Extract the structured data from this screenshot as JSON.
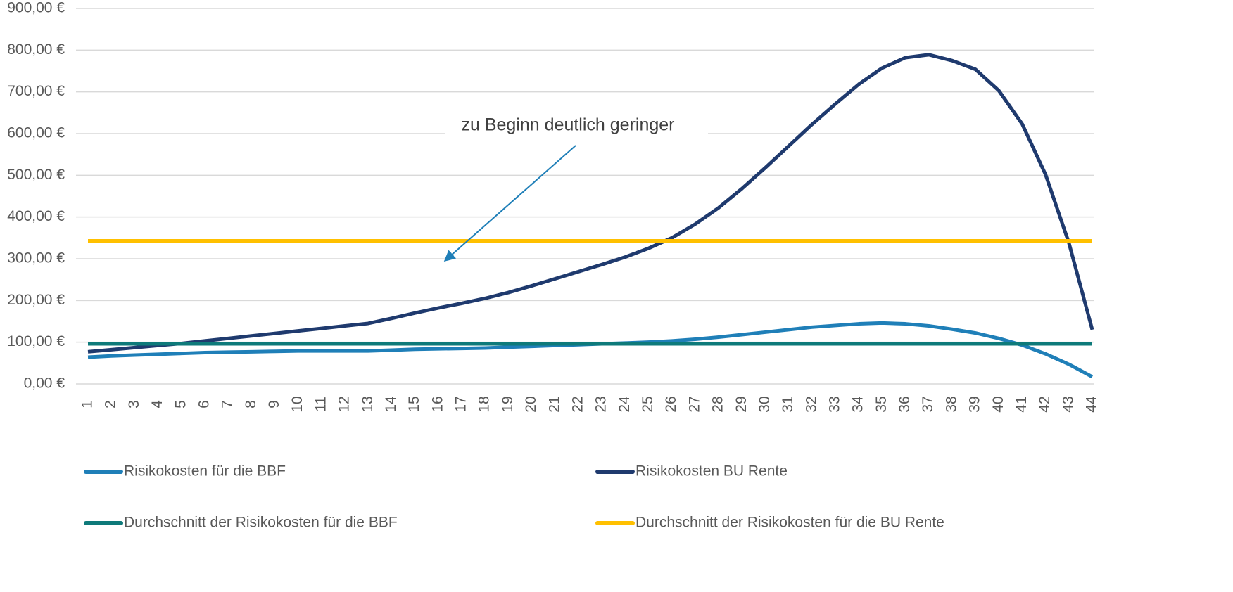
{
  "chart_data": {
    "type": "line",
    "annotation": "zu Beginn deutlich geringer",
    "categories": [
      "1",
      "2",
      "3",
      "4",
      "5",
      "6",
      "7",
      "8",
      "9",
      "10",
      "11",
      "12",
      "13",
      "14",
      "15",
      "16",
      "17",
      "18",
      "19",
      "20",
      "21",
      "22",
      "23",
      "24",
      "25",
      "26",
      "27",
      "28",
      "29",
      "30",
      "31",
      "32",
      "33",
      "34",
      "35",
      "36",
      "37",
      "38",
      "39",
      "40",
      "41",
      "42",
      "43",
      "44"
    ],
    "series": [
      {
        "name": "Risikokosten für die BBF",
        "color": "#1f7fb8",
        "values": [
          64,
          67,
          69,
          71,
          73,
          75,
          76,
          77,
          78,
          79,
          79,
          79,
          79,
          81,
          83,
          84,
          85,
          86,
          88,
          90,
          92,
          94,
          96,
          98,
          100,
          103,
          107,
          112,
          118,
          124,
          130,
          136,
          140,
          144,
          146,
          144,
          139,
          131,
          122,
          109,
          93,
          72,
          47,
          17
        ]
      },
      {
        "name": "Risikokosten BU Rente",
        "color": "#1f3a6e",
        "values": [
          77,
          82,
          87,
          92,
          97,
          103,
          109,
          115,
          121,
          127,
          133,
          139,
          145,
          157,
          170,
          182,
          193,
          205,
          219,
          235,
          252,
          269,
          286,
          304,
          325,
          350,
          383,
          422,
          468,
          518,
          570,
          622,
          671,
          718,
          757,
          782,
          789,
          775,
          754,
          703,
          623,
          502,
          338,
          130
        ]
      },
      {
        "name": "Durchschnitt der Risikokosten für die BBF",
        "color": "#0e7a7a",
        "values": [
          96,
          96,
          96,
          96,
          96,
          96,
          96,
          96,
          96,
          96,
          96,
          96,
          96,
          96,
          96,
          96,
          96,
          96,
          96,
          96,
          96,
          96,
          96,
          96,
          96,
          96,
          96,
          96,
          96,
          96,
          96,
          96,
          96,
          96,
          96,
          96,
          96,
          96,
          96,
          96,
          96,
          96,
          96,
          96
        ]
      },
      {
        "name": "Durchschnitt der Risikokosten für die BU Rente",
        "color": "#ffc000",
        "values": [
          343,
          343,
          343,
          343,
          343,
          343,
          343,
          343,
          343,
          343,
          343,
          343,
          343,
          343,
          343,
          343,
          343,
          343,
          343,
          343,
          343,
          343,
          343,
          343,
          343,
          343,
          343,
          343,
          343,
          343,
          343,
          343,
          343,
          343,
          343,
          343,
          343,
          343,
          343,
          343,
          343,
          343,
          343,
          343
        ]
      }
    ],
    "ylim": [
      0,
      900
    ],
    "yticks": [
      {
        "value": 0,
        "label": "0,00 €"
      },
      {
        "value": 100,
        "label": "100,00 €"
      },
      {
        "value": 200,
        "label": "200,00 €"
      },
      {
        "value": 300,
        "label": "300,00 €"
      },
      {
        "value": 400,
        "label": "400,00 €"
      },
      {
        "value": 500,
        "label": "500,00 €"
      },
      {
        "value": 600,
        "label": "600,00 €"
      },
      {
        "value": 700,
        "label": "700,00 €"
      },
      {
        "value": 800,
        "label": "800,00 €"
      },
      {
        "value": 900,
        "label": "900,00 €"
      }
    ],
    "grid": true
  }
}
